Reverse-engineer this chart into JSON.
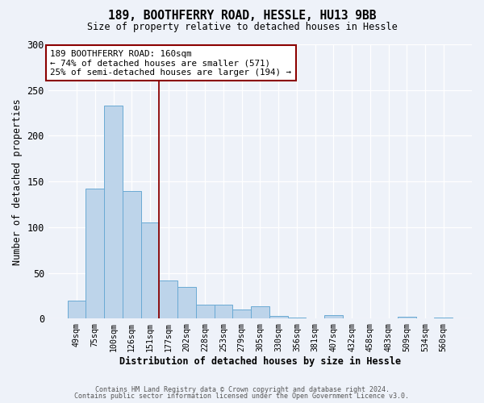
{
  "title": "189, BOOTHFERRY ROAD, HESSLE, HU13 9BB",
  "subtitle": "Size of property relative to detached houses in Hessle",
  "xlabel": "Distribution of detached houses by size in Hessle",
  "ylabel": "Number of detached properties",
  "bar_labels": [
    "49sqm",
    "75sqm",
    "100sqm",
    "126sqm",
    "151sqm",
    "177sqm",
    "202sqm",
    "228sqm",
    "253sqm",
    "279sqm",
    "305sqm",
    "330sqm",
    "356sqm",
    "381sqm",
    "407sqm",
    "432sqm",
    "458sqm",
    "483sqm",
    "509sqm",
    "534sqm",
    "560sqm"
  ],
  "bar_values": [
    20,
    142,
    233,
    140,
    105,
    42,
    35,
    15,
    15,
    10,
    14,
    3,
    1,
    0,
    4,
    0,
    0,
    0,
    2,
    0,
    1
  ],
  "bar_color": "#bdd4ea",
  "bar_edge_color": "#6aaad4",
  "vline_color": "#8b0000",
  "annotation_line1": "189 BOOTHFERRY ROAD: 160sqm",
  "annotation_line2": "← 74% of detached houses are smaller (571)",
  "annotation_line3": "25% of semi-detached houses are larger (194) →",
  "annotation_box_color": "#ffffff",
  "annotation_box_edge": "#8b0000",
  "ylim": [
    0,
    300
  ],
  "yticks": [
    0,
    50,
    100,
    150,
    200,
    250,
    300
  ],
  "footer_line1": "Contains HM Land Registry data © Crown copyright and database right 2024.",
  "footer_line2": "Contains public sector information licensed under the Open Government Licence v3.0.",
  "bg_color": "#eef2f9"
}
